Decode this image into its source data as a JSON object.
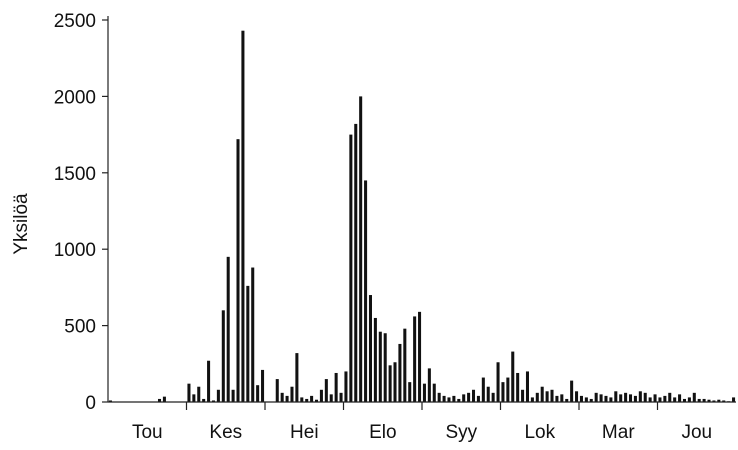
{
  "chart_data": {
    "type": "bar",
    "title": "",
    "ylabel": "Yksilöä",
    "xlabel": "",
    "ylim": [
      0,
      2500
    ],
    "y_ticks": [
      0,
      500,
      1000,
      1500,
      2000,
      2500
    ],
    "grid": false,
    "bar_color": "#111111",
    "x_month_labels": [
      "Tou",
      "Kes",
      "Hei",
      "Elo",
      "Syy",
      "Lok",
      "Mar",
      "Jou"
    ],
    "x_month_spans": [
      [
        0,
        16
      ],
      [
        16,
        32
      ],
      [
        32,
        48
      ],
      [
        48,
        64
      ],
      [
        64,
        80
      ],
      [
        80,
        96
      ],
      [
        96,
        112
      ],
      [
        112,
        128
      ]
    ],
    "series": [
      {
        "values": [
          10,
          3,
          0,
          0,
          0,
          0,
          0,
          0,
          0,
          0,
          20,
          35,
          0,
          0,
          0,
          0,
          120,
          50,
          100,
          20,
          270,
          10,
          80,
          600,
          950,
          80,
          1720,
          2430,
          760,
          880,
          110,
          210,
          0,
          0,
          150,
          60,
          40,
          100,
          320,
          30,
          20,
          40,
          15,
          80,
          150,
          50,
          190,
          60,
          200,
          1750,
          1820,
          2000,
          1450,
          700,
          550,
          460,
          450,
          240,
          260,
          380,
          480,
          130,
          560,
          590,
          120,
          220,
          120,
          60,
          40,
          30,
          40,
          20,
          50,
          60,
          80,
          40,
          160,
          100,
          60,
          260,
          130,
          160,
          330,
          190,
          80,
          200,
          30,
          60,
          100,
          70,
          80,
          40,
          50,
          20,
          140,
          70,
          40,
          30,
          20,
          60,
          50,
          40,
          30,
          70,
          50,
          60,
          50,
          40,
          70,
          60,
          30,
          50,
          30,
          40,
          60,
          30,
          50,
          20,
          30,
          60,
          20,
          20,
          15,
          10,
          15,
          10,
          5,
          30
        ]
      }
    ]
  }
}
